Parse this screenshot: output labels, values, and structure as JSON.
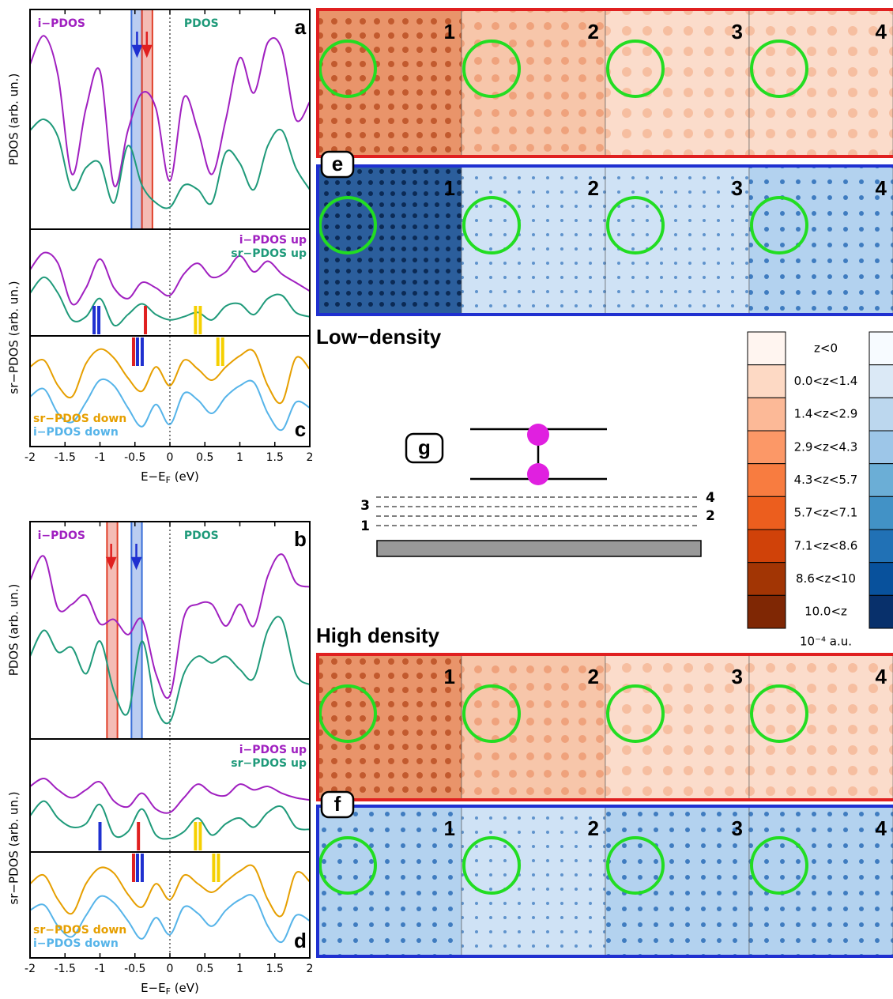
{
  "chart_data": [
    {
      "type": "line",
      "panel": "a",
      "ylabel": "PDOS (arb. un.)",
      "legend": "top-split",
      "x": [
        -2,
        -1.8,
        -1.6,
        -1.4,
        -1.2,
        -1,
        -0.8,
        -0.6,
        -0.4,
        -0.2,
        0,
        0.2,
        0.4,
        0.6,
        0.8,
        1,
        1.2,
        1.4,
        1.6,
        1.8,
        2
      ],
      "xlim": [
        -2,
        2
      ],
      "ylim": [
        0,
        100
      ],
      "series": [
        {
          "name": "i−PDOS",
          "color": "#a020c0",
          "values": [
            75,
            88,
            70,
            25,
            55,
            72,
            20,
            45,
            62,
            55,
            22,
            60,
            45,
            25,
            50,
            78,
            62,
            85,
            82,
            50,
            58
          ]
        },
        {
          "name": "PDOS",
          "color": "#1f9a7a",
          "values": [
            45,
            50,
            42,
            18,
            28,
            30,
            12,
            38,
            20,
            12,
            10,
            20,
            18,
            12,
            35,
            30,
            18,
            38,
            45,
            28,
            18
          ]
        }
      ],
      "bands": [
        {
          "from": -0.55,
          "to": -0.4,
          "color": "#3a6fd8"
        },
        {
          "from": -0.4,
          "to": -0.25,
          "color": "#e0402a"
        }
      ],
      "arrows": [
        {
          "x": -0.47,
          "color": "#1f30d0"
        },
        {
          "x": -0.33,
          "color": "#e02020"
        }
      ]
    },
    {
      "type": "line",
      "ylabel": "sr−PDOS (arb. un.)",
      "legend": "top-right",
      "x": [
        -2,
        -1.8,
        -1.6,
        -1.4,
        -1.2,
        -1,
        -0.8,
        -0.6,
        -0.4,
        -0.2,
        0,
        0.2,
        0.4,
        0.6,
        0.8,
        1,
        1.2,
        1.4,
        1.6,
        1.8,
        2
      ],
      "xlim": [
        -2,
        2
      ],
      "ylim": [
        0,
        100
      ],
      "series": [
        {
          "name": "i−PDOS up",
          "color": "#a020c0",
          "values": [
            62,
            78,
            68,
            30,
            45,
            72,
            45,
            35,
            50,
            45,
            38,
            58,
            68,
            55,
            60,
            75,
            60,
            70,
            58,
            50,
            42
          ]
        },
        {
          "name": "sr−PDOS up",
          "color": "#1f9a7a",
          "values": [
            40,
            55,
            40,
            15,
            18,
            35,
            10,
            20,
            30,
            20,
            15,
            18,
            22,
            15,
            28,
            30,
            20,
            35,
            38,
            22,
            18
          ]
        }
      ],
      "markers": [
        {
          "x": -1.05,
          "color": "#1f30d0",
          "double": true
        },
        {
          "x": -0.35,
          "color": "#e02020",
          "double": false
        },
        {
          "x": 0.4,
          "color": "#f5d000",
          "double": true
        }
      ]
    },
    {
      "type": "line",
      "panel": "c",
      "legend": "bottom-left",
      "x": [
        -2,
        -1.8,
        -1.6,
        -1.4,
        -1.2,
        -1,
        -0.8,
        -0.6,
        -0.4,
        -0.2,
        0,
        0.2,
        0.4,
        0.6,
        0.8,
        1,
        1.2,
        1.4,
        1.6,
        1.8,
        2
      ],
      "xlim": [
        -2,
        2
      ],
      "ylim": [
        0,
        100
      ],
      "xticks": [
        -2,
        -1.5,
        -1,
        -0.5,
        0,
        0.5,
        1,
        1.5,
        2
      ],
      "xlabel": [
        "E−E",
        "F",
        " (eV)"
      ],
      "series": [
        {
          "name": "sr−PDOS down",
          "color": "#e69f00",
          "values": [
            72,
            78,
            55,
            45,
            75,
            88,
            80,
            62,
            50,
            72,
            55,
            78,
            70,
            60,
            72,
            82,
            86,
            55,
            40,
            80,
            70
          ]
        },
        {
          "name": "i−PDOS down",
          "color": "#56b4e9",
          "values": [
            45,
            52,
            30,
            22,
            40,
            60,
            55,
            35,
            18,
            38,
            20,
            48,
            42,
            30,
            45,
            55,
            58,
            30,
            15,
            40,
            35
          ]
        }
      ],
      "markers": [
        {
          "x": -0.52,
          "color": "#e02020",
          "double": false
        },
        {
          "x": -0.43,
          "color": "#1f30d0",
          "double": true
        },
        {
          "x": 0.72,
          "color": "#f5d000",
          "double": true
        }
      ]
    },
    {
      "type": "line",
      "panel": "b",
      "ylabel": "PDOS (arb. un.)",
      "legend": "top-split",
      "x": [
        -2,
        -1.8,
        -1.6,
        -1.4,
        -1.2,
        -1,
        -0.8,
        -0.6,
        -0.4,
        -0.2,
        0,
        0.2,
        0.4,
        0.6,
        0.8,
        1,
        1.2,
        1.4,
        1.6,
        1.8,
        2
      ],
      "xlim": [
        -2,
        2
      ],
      "ylim": [
        0,
        100
      ],
      "series": [
        {
          "name": "i−PDOS",
          "color": "#a020c0",
          "values": [
            73,
            84,
            60,
            62,
            66,
            53,
            55,
            48,
            55,
            30,
            20,
            56,
            62,
            62,
            52,
            62,
            52,
            75,
            85,
            72,
            70
          ]
        },
        {
          "name": "PDOS",
          "color": "#1f9a7a",
          "values": [
            38,
            50,
            40,
            42,
            30,
            45,
            22,
            12,
            45,
            15,
            8,
            30,
            38,
            35,
            38,
            32,
            28,
            50,
            55,
            30,
            25
          ]
        }
      ],
      "bands": [
        {
          "from": -0.9,
          "to": -0.75,
          "color": "#e0402a"
        },
        {
          "from": -0.55,
          "to": -0.4,
          "color": "#3a6fd8"
        }
      ],
      "arrows": [
        {
          "x": -0.84,
          "color": "#e02020"
        },
        {
          "x": -0.48,
          "color": "#1f30d0"
        }
      ]
    },
    {
      "type": "line",
      "ylabel": "sr−PDOS (arb. un.)",
      "legend": "top-right",
      "x": [
        -2,
        -1.8,
        -1.6,
        -1.4,
        -1.2,
        -1,
        -0.8,
        -0.6,
        -0.4,
        -0.2,
        0,
        0.2,
        0.4,
        0.6,
        0.8,
        1,
        1.2,
        1.4,
        1.6,
        1.8,
        2
      ],
      "xlim": [
        -2,
        2
      ],
      "ylim": [
        0,
        100
      ],
      "series": [
        {
          "name": "i−PDOS up",
          "color": "#a020c0",
          "values": [
            58,
            65,
            55,
            48,
            55,
            62,
            45,
            40,
            52,
            38,
            35,
            48,
            60,
            52,
            50,
            60,
            55,
            58,
            52,
            48,
            46
          ]
        },
        {
          "name": "sr−PDOS up",
          "color": "#1f9a7a",
          "values": [
            32,
            45,
            30,
            22,
            25,
            42,
            15,
            18,
            38,
            15,
            12,
            18,
            30,
            15,
            25,
            30,
            22,
            35,
            40,
            22,
            20
          ]
        }
      ],
      "markers": [
        {
          "x": -1.0,
          "color": "#1f30d0",
          "double": false
        },
        {
          "x": -0.45,
          "color": "#e02020",
          "double": false
        },
        {
          "x": 0.4,
          "color": "#f5d000",
          "double": true
        }
      ]
    },
    {
      "type": "line",
      "panel": "d",
      "legend": "bottom-left",
      "x": [
        -2,
        -1.8,
        -1.6,
        -1.4,
        -1.2,
        -1,
        -0.8,
        -0.6,
        -0.4,
        -0.2,
        0,
        0.2,
        0.4,
        0.6,
        0.8,
        1,
        1.2,
        1.4,
        1.6,
        1.8,
        2
      ],
      "xlim": [
        -2,
        2
      ],
      "ylim": [
        0,
        100
      ],
      "xticks": [
        -2,
        -1.5,
        -1,
        -0.5,
        0,
        0.5,
        1,
        1.5,
        2
      ],
      "xlabel": [
        "E−E",
        "F",
        " (eV)"
      ],
      "series": [
        {
          "name": "sr−PDOS down",
          "color": "#e69f00",
          "values": [
            70,
            78,
            55,
            42,
            70,
            85,
            80,
            60,
            48,
            70,
            55,
            78,
            70,
            62,
            72,
            82,
            86,
            55,
            40,
            80,
            72
          ]
        },
        {
          "name": "i−PDOS down",
          "color": "#56b4e9",
          "values": [
            45,
            50,
            30,
            20,
            40,
            58,
            52,
            35,
            18,
            38,
            22,
            48,
            42,
            30,
            45,
            55,
            58,
            30,
            15,
            40,
            35
          ]
        }
      ],
      "markers": [
        {
          "x": -0.52,
          "color": "#e02020",
          "double": false
        },
        {
          "x": -0.43,
          "color": "#1f30d0",
          "double": true
        },
        {
          "x": 0.66,
          "color": "#f5d000",
          "double": true
        }
      ]
    }
  ],
  "figure": {
    "low_title": "Low−density",
    "high_title": "High density",
    "row_labels": [
      "e",
      "f"
    ],
    "panel_numbers": [
      "1",
      "2",
      "3",
      "4"
    ],
    "diagram_label": "g",
    "diagram_levels": [
      "1",
      "2",
      "3",
      "4"
    ],
    "colorbar_labels": [
      "z<0",
      "0.0<z<1.4",
      "1.4<z<2.9",
      "2.9<z<4.3",
      "4.3<z<5.7",
      "5.7<z<7.1",
      "7.1<z<8.6",
      "8.6<z<10",
      "10.0<z"
    ],
    "colorbar_unit": "10⁻⁴ a.u."
  }
}
